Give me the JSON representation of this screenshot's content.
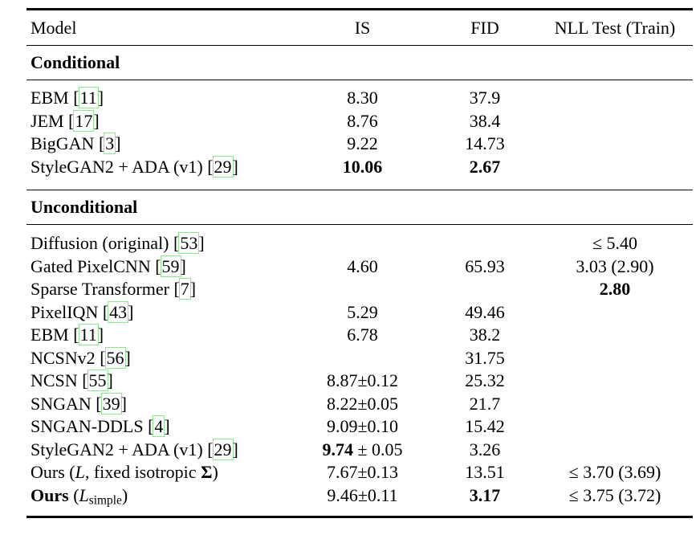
{
  "table": {
    "citation_box_color": "#8ee98e",
    "columns": [
      "Model",
      "IS",
      "FID",
      "NLL Test (Train)"
    ],
    "sections": [
      {
        "title": "Conditional",
        "rows": [
          {
            "model": [
              {
                "t": "EBM "
              },
              {
                "t": "11",
                "s": "cite"
              }
            ],
            "is": [
              {
                "t": "8.30"
              }
            ],
            "fid": [
              {
                "t": "37.9"
              }
            ],
            "nll": []
          },
          {
            "model": [
              {
                "t": "JEM "
              },
              {
                "t": "17",
                "s": "cite"
              }
            ],
            "is": [
              {
                "t": "8.76"
              }
            ],
            "fid": [
              {
                "t": "38.4"
              }
            ],
            "nll": []
          },
          {
            "model": [
              {
                "t": "BigGAN "
              },
              {
                "t": "3",
                "s": "cite"
              }
            ],
            "is": [
              {
                "t": "9.22"
              }
            ],
            "fid": [
              {
                "t": "14.73"
              }
            ],
            "nll": []
          },
          {
            "model": [
              {
                "t": "StyleGAN2 + ADA (v1) "
              },
              {
                "t": "29",
                "s": "cite"
              }
            ],
            "is": [
              {
                "t": "10.06",
                "s": "b"
              }
            ],
            "fid": [
              {
                "t": "2.67",
                "s": "b"
              }
            ],
            "nll": []
          }
        ]
      },
      {
        "title": "Unconditional",
        "rows": [
          {
            "model": [
              {
                "t": "Diffusion (original) "
              },
              {
                "t": "53",
                "s": "cite"
              }
            ],
            "is": [],
            "fid": [],
            "nll": [
              {
                "t": "≤ 5.40"
              }
            ]
          },
          {
            "model": [
              {
                "t": "Gated PixelCNN "
              },
              {
                "t": "59",
                "s": "cite"
              }
            ],
            "is": [
              {
                "t": "4.60"
              }
            ],
            "fid": [
              {
                "t": "65.93"
              }
            ],
            "nll": [
              {
                "t": "3.03 (2.90)"
              }
            ]
          },
          {
            "model": [
              {
                "t": "Sparse Transformer "
              },
              {
                "t": "7",
                "s": "cite"
              }
            ],
            "is": [],
            "fid": [],
            "nll": [
              {
                "t": "2.80",
                "s": "b"
              }
            ]
          },
          {
            "model": [
              {
                "t": "PixelIQN "
              },
              {
                "t": "43",
                "s": "cite"
              }
            ],
            "is": [
              {
                "t": "5.29"
              }
            ],
            "fid": [
              {
                "t": "49.46"
              }
            ],
            "nll": []
          },
          {
            "model": [
              {
                "t": "EBM "
              },
              {
                "t": "11",
                "s": "cite"
              }
            ],
            "is": [
              {
                "t": "6.78"
              }
            ],
            "fid": [
              {
                "t": "38.2"
              }
            ],
            "nll": []
          },
          {
            "model": [
              {
                "t": "NCSNv2 "
              },
              {
                "t": "56",
                "s": "cite"
              }
            ],
            "is": [],
            "fid": [
              {
                "t": "31.75"
              }
            ],
            "nll": []
          },
          {
            "model": [
              {
                "t": "NCSN "
              },
              {
                "t": "55",
                "s": "cite"
              }
            ],
            "is": [
              {
                "t": "8.87±0.12"
              }
            ],
            "fid": [
              {
                "t": "25.32"
              }
            ],
            "nll": []
          },
          {
            "model": [
              {
                "t": "SNGAN "
              },
              {
                "t": "39",
                "s": "cite"
              }
            ],
            "is": [
              {
                "t": "8.22±0.05"
              }
            ],
            "fid": [
              {
                "t": "21.7"
              }
            ],
            "nll": []
          },
          {
            "model": [
              {
                "t": "SNGAN-DDLS "
              },
              {
                "t": "4",
                "s": "cite"
              }
            ],
            "is": [
              {
                "t": "9.09±0.10"
              }
            ],
            "fid": [
              {
                "t": "15.42"
              }
            ],
            "nll": []
          },
          {
            "model": [
              {
                "t": "StyleGAN2 + ADA (v1) "
              },
              {
                "t": "29",
                "s": "cite"
              }
            ],
            "is": [
              {
                "t": "9.74",
                "s": "b"
              },
              {
                "t": " ± 0.05"
              }
            ],
            "fid": [
              {
                "t": "3.26"
              }
            ],
            "nll": []
          },
          {
            "model": [
              {
                "t": "Ours ("
              },
              {
                "t": "L",
                "s": "i"
              },
              {
                "t": ", fixed isotropic "
              },
              {
                "t": "Σ",
                "s": "b"
              },
              {
                "t": ")"
              }
            ],
            "is": [
              {
                "t": "7.67±0.13"
              }
            ],
            "fid": [
              {
                "t": "13.51"
              }
            ],
            "nll": [
              {
                "t": "≤ 3.70 (3.69)"
              }
            ]
          },
          {
            "model": [
              {
                "t": "Ours",
                "s": "b"
              },
              {
                "t": " ("
              },
              {
                "t": "L",
                "s": "i"
              },
              {
                "t": "simple",
                "s": "sub"
              },
              {
                "t": ")"
              }
            ],
            "is": [
              {
                "t": "9.46±0.11"
              }
            ],
            "fid": [
              {
                "t": "3.17",
                "s": "b"
              }
            ],
            "nll": [
              {
                "t": "≤ 3.75 (3.72)"
              }
            ]
          }
        ]
      }
    ]
  }
}
